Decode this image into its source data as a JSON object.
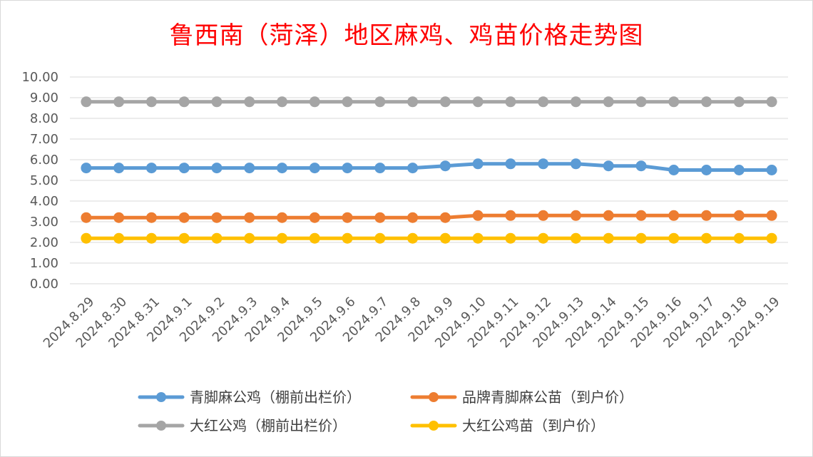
{
  "chart_data": {
    "type": "line",
    "title": "鲁西南（菏泽）地区麻鸡、鸡苗价格走势图",
    "categories": [
      "2024.8.29",
      "2024.8.30",
      "2024.8.31",
      "2024.9.1",
      "2024.9.2",
      "2024.9.3",
      "2024.9.4",
      "2024.9.5",
      "2024.9.6",
      "2024.9.7",
      "2024.9.8",
      "2024.9.9",
      "2024.9.10",
      "2024.9.11",
      "2024.9.12",
      "2024.9.13",
      "2024.9.14",
      "2024.9.15",
      "2024.9.16",
      "2024.9.17",
      "2024.9.18",
      "2024.9.19"
    ],
    "ylim": [
      0,
      10
    ],
    "yticks": [
      "0.00",
      "1.00",
      "2.00",
      "3.00",
      "4.00",
      "5.00",
      "6.00",
      "7.00",
      "8.00",
      "9.00",
      "10.00"
    ],
    "grid": true,
    "legend_position": "bottom",
    "series": [
      {
        "name": "青脚麻公鸡（棚前出栏价）",
        "color": "#5b9bd5",
        "values": [
          5.6,
          5.6,
          5.6,
          5.6,
          5.6,
          5.6,
          5.6,
          5.6,
          5.6,
          5.6,
          5.6,
          5.7,
          5.8,
          5.8,
          5.8,
          5.8,
          5.7,
          5.7,
          5.5,
          5.5,
          5.5,
          5.5
        ]
      },
      {
        "name": "品牌青脚麻公苗（到户价）",
        "color": "#ed7d31",
        "values": [
          3.2,
          3.2,
          3.2,
          3.2,
          3.2,
          3.2,
          3.2,
          3.2,
          3.2,
          3.2,
          3.2,
          3.2,
          3.3,
          3.3,
          3.3,
          3.3,
          3.3,
          3.3,
          3.3,
          3.3,
          3.3,
          3.3
        ]
      },
      {
        "name": "大红公鸡（棚前出栏价）",
        "color": "#a5a5a5",
        "values": [
          8.8,
          8.8,
          8.8,
          8.8,
          8.8,
          8.8,
          8.8,
          8.8,
          8.8,
          8.8,
          8.8,
          8.8,
          8.8,
          8.8,
          8.8,
          8.8,
          8.8,
          8.8,
          8.8,
          8.8,
          8.8,
          8.8
        ]
      },
      {
        "name": "大红公鸡苗（到户价）",
        "color": "#ffc000",
        "values": [
          2.2,
          2.2,
          2.2,
          2.2,
          2.2,
          2.2,
          2.2,
          2.2,
          2.2,
          2.2,
          2.2,
          2.2,
          2.2,
          2.2,
          2.2,
          2.2,
          2.2,
          2.2,
          2.2,
          2.2,
          2.2,
          2.2
        ]
      }
    ]
  }
}
